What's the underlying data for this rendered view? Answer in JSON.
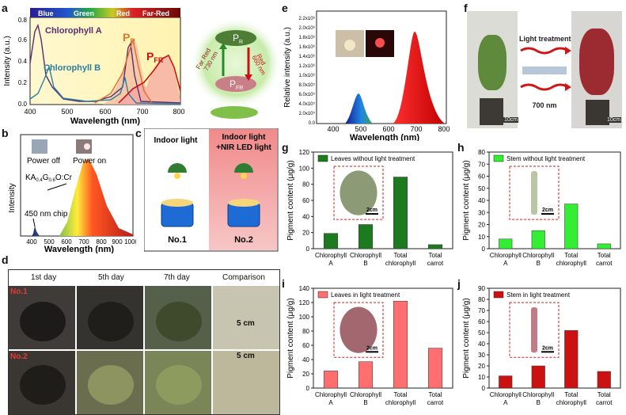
{
  "panels": {
    "a": "a",
    "b": "b",
    "c": "c",
    "d": "d",
    "e": "e",
    "f": "f",
    "g": "g",
    "h": "h",
    "i": "i",
    "j": "j"
  },
  "a": {
    "spectrum_labels": [
      "Blue",
      "Green",
      "Red",
      "Far-Red"
    ],
    "ylabel": "Intensity (a.u.)",
    "xlabel": "Wavelength (nm)",
    "xticks": [
      "400",
      "500",
      "600",
      "700",
      "800"
    ],
    "yticks": [
      "0.0",
      "0.2",
      "0.4",
      "0.6",
      "0.8"
    ],
    "chlA": "Chlorophyll A",
    "chlB": "Chlorophyll B",
    "pr": "P",
    "pr_sub": "R",
    "pfr": "P",
    "pfr_sub": "FR",
    "diagram": {
      "red_label": "Red\n660 nm",
      "red1": "Red",
      "red2": "660 nm",
      "far1": "Far Red",
      "far2": "730 nm",
      "top": "P",
      "top_sub": "R",
      "bottom": "P",
      "bottom_sub": "FR"
    }
  },
  "b": {
    "power_off": "Power off",
    "power_on": "Power on",
    "formula": "KA",
    "formula_s1": "0.4",
    "formula_g": "G",
    "formula_s2": "0.6",
    "formula_rest": "O:Cr",
    "chip": "450 nm chip",
    "ylabel": "Intensity",
    "xlabel": "Wavelength (nm)",
    "xticks": [
      "400",
      "500",
      "600",
      "700",
      "800",
      "900",
      "1000"
    ]
  },
  "c": {
    "left_title": "Indoor light",
    "right_title1": "Indoor light",
    "right_title2": "+NIR LED light",
    "left_no": "No.1",
    "right_no": "No.2"
  },
  "d": {
    "headers": [
      "1st day",
      "5th day",
      "7th day",
      "Comparison"
    ],
    "row1": "No.1",
    "row2": "No.2",
    "scale1": "5 cm",
    "scale2": "5 cm"
  },
  "e": {
    "ylabel": "Relative intensity (a.u.)",
    "xlabel": "Wavelength (nm)",
    "xticks": [
      "400",
      "500",
      "600",
      "700",
      "800"
    ],
    "yticks": [
      "0.0",
      "2.0x10⁵",
      "4.0x10⁵",
      "6.0x10⁵",
      "8.0x10⁵",
      "1.0x10⁶",
      "1.2x10⁶",
      "1.4x10⁶",
      "1.6x10⁶",
      "1.8x10⁶",
      "2.0x10⁶",
      "2.2x10⁶"
    ]
  },
  "f": {
    "light_treatment": "Light treatment",
    "nm": "700 nm",
    "scale_left": "10cm",
    "scale_right": "10cm"
  },
  "chart_data": [
    {
      "id": "g",
      "type": "bar",
      "title": "Leaves without light treatment",
      "ylabel": "Pigment content (μg/g)",
      "categories": [
        "Chlorophyll A",
        "Chlorophyll B",
        "Total chlorophyll",
        "Total carrot"
      ],
      "values": [
        19,
        30,
        89,
        5
      ],
      "ylim": [
        0,
        120
      ],
      "yticks": [
        0,
        20,
        40,
        60,
        80,
        100,
        120
      ],
      "color": "#1e7a1e",
      "inset_scale": "2cm"
    },
    {
      "id": "h",
      "type": "bar",
      "title": "Stem without light treatment",
      "ylabel": "Pigment content (μg/g)",
      "categories": [
        "Chlorophyll A",
        "Chlorophyll B",
        "Total chlorophyll",
        "Total carrot"
      ],
      "values": [
        8,
        15,
        37,
        4
      ],
      "ylim": [
        0,
        80
      ],
      "yticks": [
        0,
        10,
        20,
        30,
        40,
        50,
        60,
        70,
        80
      ],
      "color": "#33ee33",
      "inset_scale": "2cm"
    },
    {
      "id": "i",
      "type": "bar",
      "title": "Leaves in light treatment",
      "ylabel": "Pigment content (μg/g)",
      "categories": [
        "Chlorophyll A",
        "Chlorophyll B",
        "Total chlorophyll",
        "Total carrot"
      ],
      "values": [
        24,
        37,
        122,
        56
      ],
      "ylim": [
        0,
        140
      ],
      "yticks": [
        0,
        20,
        40,
        60,
        80,
        100,
        120,
        140
      ],
      "color": "#ff6f6f",
      "inset_scale": "2cm"
    },
    {
      "id": "j",
      "type": "bar",
      "title": "Stem in light treatment",
      "ylabel": "Pigment content (μg/g)",
      "categories": [
        "Chlorophyll A",
        "Chlorophyll B",
        "Total chlorophyll",
        "Total carrot"
      ],
      "values": [
        11,
        20,
        52,
        15
      ],
      "ylim": [
        0,
        90
      ],
      "yticks": [
        0,
        10,
        20,
        30,
        40,
        50,
        60,
        70,
        80,
        90
      ],
      "color": "#cc1111",
      "inset_scale": "2cm"
    }
  ]
}
